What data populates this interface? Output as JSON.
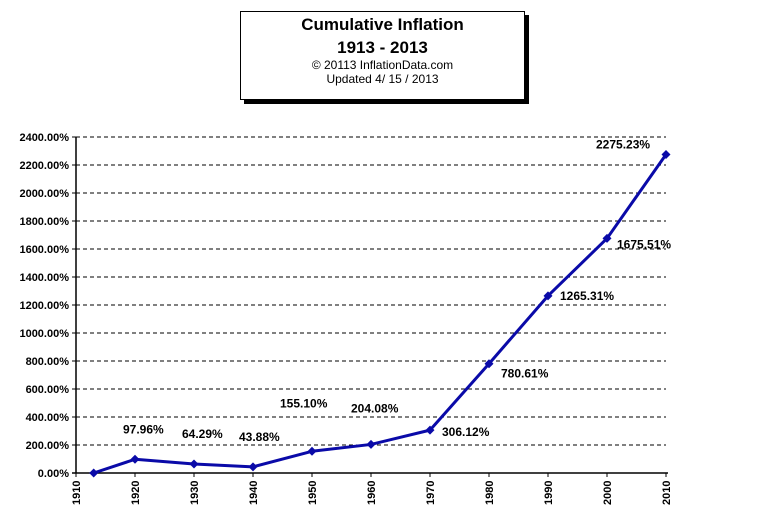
{
  "header": {
    "title_line1": "Cumulative Inflation",
    "title_line2": "1913 - 2013",
    "copyright": "© 20113 InflationData.com",
    "updated": "Updated   4/ 15 / 2013"
  },
  "chart_data": {
    "type": "line",
    "title": "Cumulative Inflation 1913 - 2013",
    "xlabel": "",
    "ylabel": "",
    "xlim": [
      1910,
      2010
    ],
    "ylim": [
      0,
      2400
    ],
    "x_ticks": [
      "1910",
      "1920",
      "1930",
      "1940",
      "1950",
      "1960",
      "1970",
      "1980",
      "1990",
      "2000",
      "2010"
    ],
    "y_ticks": [
      "0.00%",
      "200.00%",
      "400.00%",
      "600.00%",
      "800.00%",
      "1000.00%",
      "1200.00%",
      "1400.00%",
      "1600.00%",
      "1800.00%",
      "2000.00%",
      "2200.00%",
      "2400.00%"
    ],
    "grid": true,
    "series": [
      {
        "color": "#0a0aa8",
        "points": [
          {
            "x": 1913,
            "y": 0,
            "label": ""
          },
          {
            "x": 1920,
            "y": 97.96,
            "label": "97.96%"
          },
          {
            "x": 1930,
            "y": 64.29,
            "label": "64.29%"
          },
          {
            "x": 1940,
            "y": 43.88,
            "label": "43.88%"
          },
          {
            "x": 1950,
            "y": 155.1,
            "label": "155.10%"
          },
          {
            "x": 1960,
            "y": 204.08,
            "label": "204.08%"
          },
          {
            "x": 1970,
            "y": 306.12,
            "label": "306.12%"
          },
          {
            "x": 1980,
            "y": 780.61,
            "label": "780.61%"
          },
          {
            "x": 1990,
            "y": 1265.31,
            "label": "1265.31%"
          },
          {
            "x": 2000,
            "y": 1675.51,
            "label": "1675.51%"
          },
          {
            "x": 2010,
            "y": 2275.23,
            "label": "2275.23%"
          }
        ]
      }
    ]
  }
}
